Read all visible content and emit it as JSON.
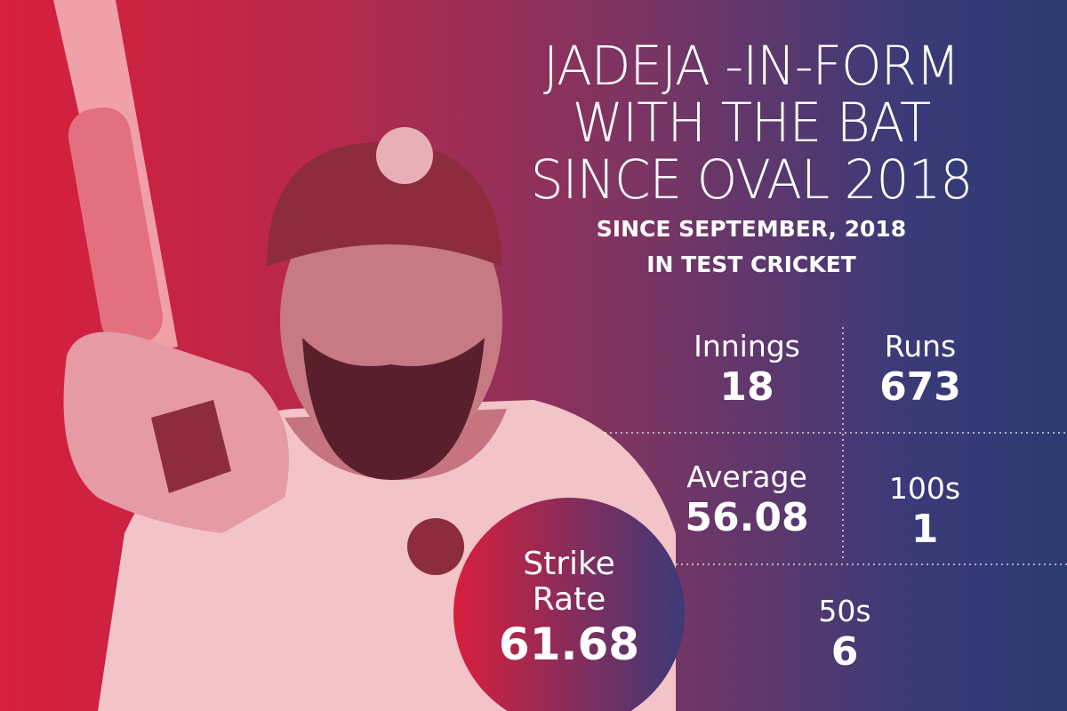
{
  "title": [
    "JADEJA -IN-FORM",
    "WITH THE BAT",
    "SINCE OVAL 2018"
  ],
  "subtitle": [
    "SINCE SEPTEMBER, 2018",
    "IN TEST CRICKET"
  ],
  "stats": [
    {
      "label": "Innings",
      "value": 18
    },
    {
      "label": "Runs",
      "value": 673
    },
    {
      "label": "Average",
      "value": 56.08
    },
    {
      "label": "100s",
      "value": 1
    },
    {
      "label": "50s",
      "value": 6
    },
    {
      "label": "Strike Rate",
      "value": 61.68
    }
  ]
}
